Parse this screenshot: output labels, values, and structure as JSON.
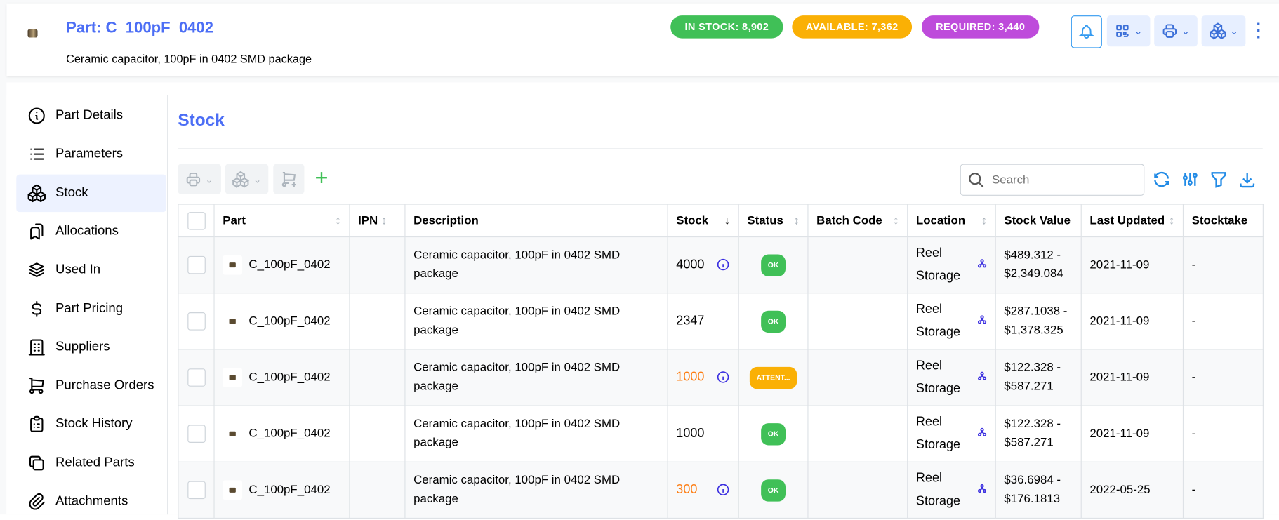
{
  "header": {
    "title": "Part: C_100pF_0402",
    "subtitle": "Ceramic capacitor, 100pF in 0402 SMD package",
    "badges": [
      {
        "label": "IN STOCK: 8,902",
        "color": "#40c057"
      },
      {
        "label": "AVAILABLE: 7,362",
        "color": "#fab005"
      },
      {
        "label": "REQUIRED: 3,440",
        "color": "#be4bdb"
      }
    ],
    "actions": [
      "bell-icon",
      "qr-code-icon",
      "printer-icon",
      "stock-icon",
      "dots-vertical-icon"
    ]
  },
  "sidebar": {
    "items": [
      {
        "label": "Part Details",
        "icon": "info-circle-icon"
      },
      {
        "label": "Parameters",
        "icon": "list-icon"
      },
      {
        "label": "Stock",
        "icon": "packages-icon",
        "active": true
      },
      {
        "label": "Allocations",
        "icon": "bookmarks-icon"
      },
      {
        "label": "Used In",
        "icon": "stack-icon"
      },
      {
        "label": "Part Pricing",
        "icon": "currency-dollar-icon"
      },
      {
        "label": "Suppliers",
        "icon": "building-icon"
      },
      {
        "label": "Purchase Orders",
        "icon": "shopping-cart-icon"
      },
      {
        "label": "Stock History",
        "icon": "clipboard-list-icon"
      },
      {
        "label": "Related Parts",
        "icon": "copy-icon"
      },
      {
        "label": "Attachments",
        "icon": "paperclip-icon"
      }
    ]
  },
  "main": {
    "title": "Stock",
    "search_placeholder": "Search",
    "columns": [
      "Part",
      "IPN",
      "Description",
      "Stock",
      "Status",
      "Batch Code",
      "Location",
      "Stock Value",
      "Last Updated",
      "Stocktake"
    ],
    "rows": [
      {
        "part": "C_100pF_0402",
        "ipn": "",
        "description": "Ceramic capacitor, 100pF in 0402 SMD package",
        "stock": "4000",
        "stock_info": true,
        "stock_warn": false,
        "status": "OK",
        "status_color": "#40c057",
        "batch": "",
        "location": "Reel Storage",
        "value": "$489.312 - $2,349.084",
        "updated": "2021-11-09",
        "stocktake": "-"
      },
      {
        "part": "C_100pF_0402",
        "ipn": "",
        "description": "Ceramic capacitor, 100pF in 0402 SMD package",
        "stock": "2347",
        "stock_info": false,
        "stock_warn": false,
        "status": "OK",
        "status_color": "#40c057",
        "batch": "",
        "location": "Reel Storage",
        "value": "$287.1038 - $1,378.325",
        "updated": "2021-11-09",
        "stocktake": "-"
      },
      {
        "part": "C_100pF_0402",
        "ipn": "",
        "description": "Ceramic capacitor, 100pF in 0402 SMD package",
        "stock": "1000",
        "stock_info": true,
        "stock_warn": true,
        "status": "ATTENT...",
        "status_color": "#fab005",
        "batch": "",
        "location": "Reel Storage",
        "value": "$122.328 - $587.271",
        "updated": "2021-11-09",
        "stocktake": "-"
      },
      {
        "part": "C_100pF_0402",
        "ipn": "",
        "description": "Ceramic capacitor, 100pF in 0402 SMD package",
        "stock": "1000",
        "stock_info": false,
        "stock_warn": false,
        "status": "OK",
        "status_color": "#40c057",
        "batch": "",
        "location": "Reel Storage",
        "value": "$122.328 - $587.271",
        "updated": "2021-11-09",
        "stocktake": "-"
      },
      {
        "part": "C_100pF_0402",
        "ipn": "",
        "description": "Ceramic capacitor, 100pF in 0402 SMD package",
        "stock": "300",
        "stock_info": true,
        "stock_warn": true,
        "status": "OK",
        "status_color": "#40c057",
        "batch": "",
        "location": "Reel Storage",
        "value": "$36.6984 - $176.1813",
        "updated": "2022-05-25",
        "stocktake": "-"
      }
    ]
  },
  "colors": {
    "accent": "#4c6ef5",
    "warning_text": "#fd7e14",
    "link_icon": "#3b2fe0"
  }
}
